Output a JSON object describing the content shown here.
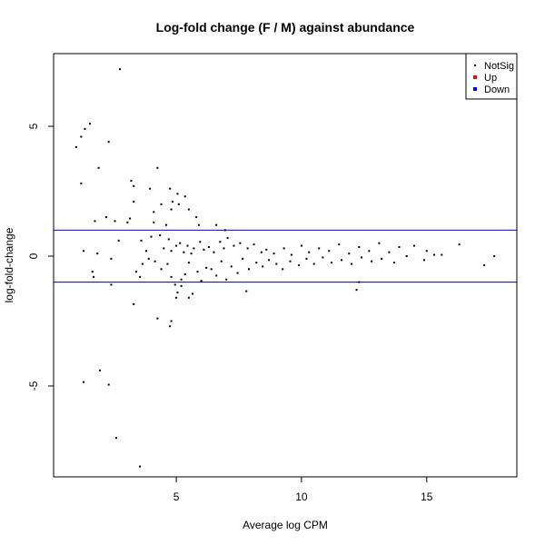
{
  "chart_data": {
    "type": "scatter",
    "title": "Log-fold change (F / M) against abundance",
    "xlabel": "Average log CPM",
    "ylabel": "log-fold-change",
    "xlim": [
      0.1,
      18.6
    ],
    "ylim": [
      -8.5,
      7.8
    ],
    "xticks": [
      5,
      10,
      15
    ],
    "yticks": [
      -5,
      0,
      5
    ],
    "hlines": [
      {
        "y": 1,
        "color": "#0000ff"
      },
      {
        "y": -1,
        "color": "#000080"
      }
    ],
    "legend": {
      "position": "top-right",
      "entries": [
        {
          "label": "NotSig",
          "color": "#000000"
        },
        {
          "label": "Up",
          "color": "#ff0000"
        },
        {
          "label": "Down",
          "color": "#0000ff"
        }
      ]
    },
    "series": [
      {
        "name": "NotSig",
        "color": "#000000",
        "points": [
          [
            2.75,
            7.2
          ],
          [
            1.55,
            5.1
          ],
          [
            1.35,
            4.9
          ],
          [
            1.2,
            4.6
          ],
          [
            1.0,
            4.2
          ],
          [
            2.3,
            4.4
          ],
          [
            1.9,
            3.4
          ],
          [
            1.2,
            2.8
          ],
          [
            4.25,
            3.4
          ],
          [
            3.2,
            2.9
          ],
          [
            3.3,
            2.7
          ],
          [
            3.95,
            2.6
          ],
          [
            3.3,
            2.1
          ],
          [
            4.75,
            2.6
          ],
          [
            5.05,
            2.4
          ],
          [
            5.35,
            2.3
          ],
          [
            4.85,
            2.1
          ],
          [
            5.1,
            2.0
          ],
          [
            4.4,
            2.0
          ],
          [
            4.8,
            1.8
          ],
          [
            5.5,
            1.8
          ],
          [
            4.1,
            1.7
          ],
          [
            3.15,
            1.45
          ],
          [
            2.2,
            1.5
          ],
          [
            1.75,
            1.35
          ],
          [
            2.55,
            1.35
          ],
          [
            3.05,
            1.3
          ],
          [
            4.1,
            1.3
          ],
          [
            4.6,
            1.2
          ],
          [
            5.8,
            1.5
          ],
          [
            5.9,
            1.2
          ],
          [
            6.6,
            1.2
          ],
          [
            6.95,
            1.0
          ],
          [
            1.3,
            0.2
          ],
          [
            1.65,
            -0.6
          ],
          [
            1.7,
            -0.8
          ],
          [
            1.85,
            0.1
          ],
          [
            2.4,
            -0.1
          ],
          [
            2.7,
            0.6
          ],
          [
            3.6,
            0.6
          ],
          [
            3.8,
            0.2
          ],
          [
            4.0,
            0.75
          ],
          [
            4.35,
            0.8
          ],
          [
            4.5,
            0.3
          ],
          [
            4.7,
            0.65
          ],
          [
            4.8,
            0.2
          ],
          [
            5.0,
            0.4
          ],
          [
            5.15,
            0.5
          ],
          [
            5.3,
            0.15
          ],
          [
            5.45,
            0.4
          ],
          [
            5.6,
            0.1
          ],
          [
            5.7,
            0.3
          ],
          [
            5.95,
            0.55
          ],
          [
            6.1,
            0.25
          ],
          [
            6.3,
            0.35
          ],
          [
            6.5,
            0.15
          ],
          [
            6.75,
            0.55
          ],
          [
            6.9,
            0.3
          ],
          [
            7.05,
            0.7
          ],
          [
            7.3,
            0.4
          ],
          [
            7.55,
            0.5
          ],
          [
            7.85,
            0.3
          ],
          [
            8.1,
            0.45
          ],
          [
            8.4,
            0.15
          ],
          [
            8.6,
            0.25
          ],
          [
            8.9,
            0.1
          ],
          [
            9.3,
            0.3
          ],
          [
            9.6,
            0.05
          ],
          [
            10.0,
            0.4
          ],
          [
            10.3,
            0.15
          ],
          [
            10.7,
            0.3
          ],
          [
            11.1,
            0.2
          ],
          [
            11.5,
            0.45
          ],
          [
            11.9,
            0.1
          ],
          [
            12.3,
            0.35
          ],
          [
            12.7,
            0.2
          ],
          [
            13.1,
            0.5
          ],
          [
            13.5,
            0.15
          ],
          [
            13.9,
            0.35
          ],
          [
            14.5,
            0.4
          ],
          [
            15.0,
            0.2
          ],
          [
            15.6,
            0.05
          ],
          [
            16.3,
            0.45
          ],
          [
            17.7,
            0.0
          ],
          [
            3.4,
            -0.6
          ],
          [
            3.55,
            -0.8
          ],
          [
            3.65,
            -0.3
          ],
          [
            3.9,
            -0.1
          ],
          [
            4.15,
            -0.2
          ],
          [
            4.4,
            -0.5
          ],
          [
            4.65,
            -0.3
          ],
          [
            4.8,
            -0.8
          ],
          [
            4.95,
            -1.1
          ],
          [
            5.05,
            -1.4
          ],
          [
            5.2,
            -0.9
          ],
          [
            5.35,
            -0.7
          ],
          [
            5.5,
            -0.25
          ],
          [
            5.65,
            -1.45
          ],
          [
            5.85,
            -0.6
          ],
          [
            6.0,
            -0.95
          ],
          [
            6.2,
            -0.45
          ],
          [
            6.4,
            -0.5
          ],
          [
            6.6,
            -0.75
          ],
          [
            6.8,
            -0.2
          ],
          [
            7.0,
            -0.9
          ],
          [
            7.2,
            -0.4
          ],
          [
            7.45,
            -0.65
          ],
          [
            7.65,
            -0.1
          ],
          [
            7.9,
            -0.5
          ],
          [
            8.2,
            -0.25
          ],
          [
            8.45,
            -0.4
          ],
          [
            8.7,
            -0.15
          ],
          [
            9.0,
            -0.3
          ],
          [
            9.25,
            -0.5
          ],
          [
            9.55,
            -0.2
          ],
          [
            9.9,
            -0.35
          ],
          [
            10.2,
            -0.1
          ],
          [
            10.5,
            -0.3
          ],
          [
            10.85,
            -0.05
          ],
          [
            11.2,
            -0.25
          ],
          [
            11.6,
            -0.15
          ],
          [
            12.0,
            -0.3
          ],
          [
            12.4,
            -0.05
          ],
          [
            12.8,
            -0.2
          ],
          [
            13.2,
            -0.1
          ],
          [
            13.7,
            -0.25
          ],
          [
            14.2,
            0.0
          ],
          [
            14.9,
            -0.15
          ],
          [
            15.3,
            0.05
          ],
          [
            17.3,
            -0.35
          ],
          [
            3.3,
            -1.85
          ],
          [
            4.25,
            -2.4
          ],
          [
            4.8,
            -2.5
          ],
          [
            4.75,
            -2.7
          ],
          [
            5.0,
            -1.6
          ],
          [
            5.5,
            -1.6
          ],
          [
            5.2,
            -1.15
          ],
          [
            7.8,
            -1.35
          ],
          [
            12.2,
            -1.3
          ],
          [
            12.3,
            -1.0
          ],
          [
            2.4,
            -1.1
          ],
          [
            1.3,
            -4.85
          ],
          [
            1.95,
            -4.4
          ],
          [
            2.3,
            -4.95
          ],
          [
            2.6,
            -7.0
          ],
          [
            3.55,
            -8.1
          ]
        ]
      }
    ]
  }
}
